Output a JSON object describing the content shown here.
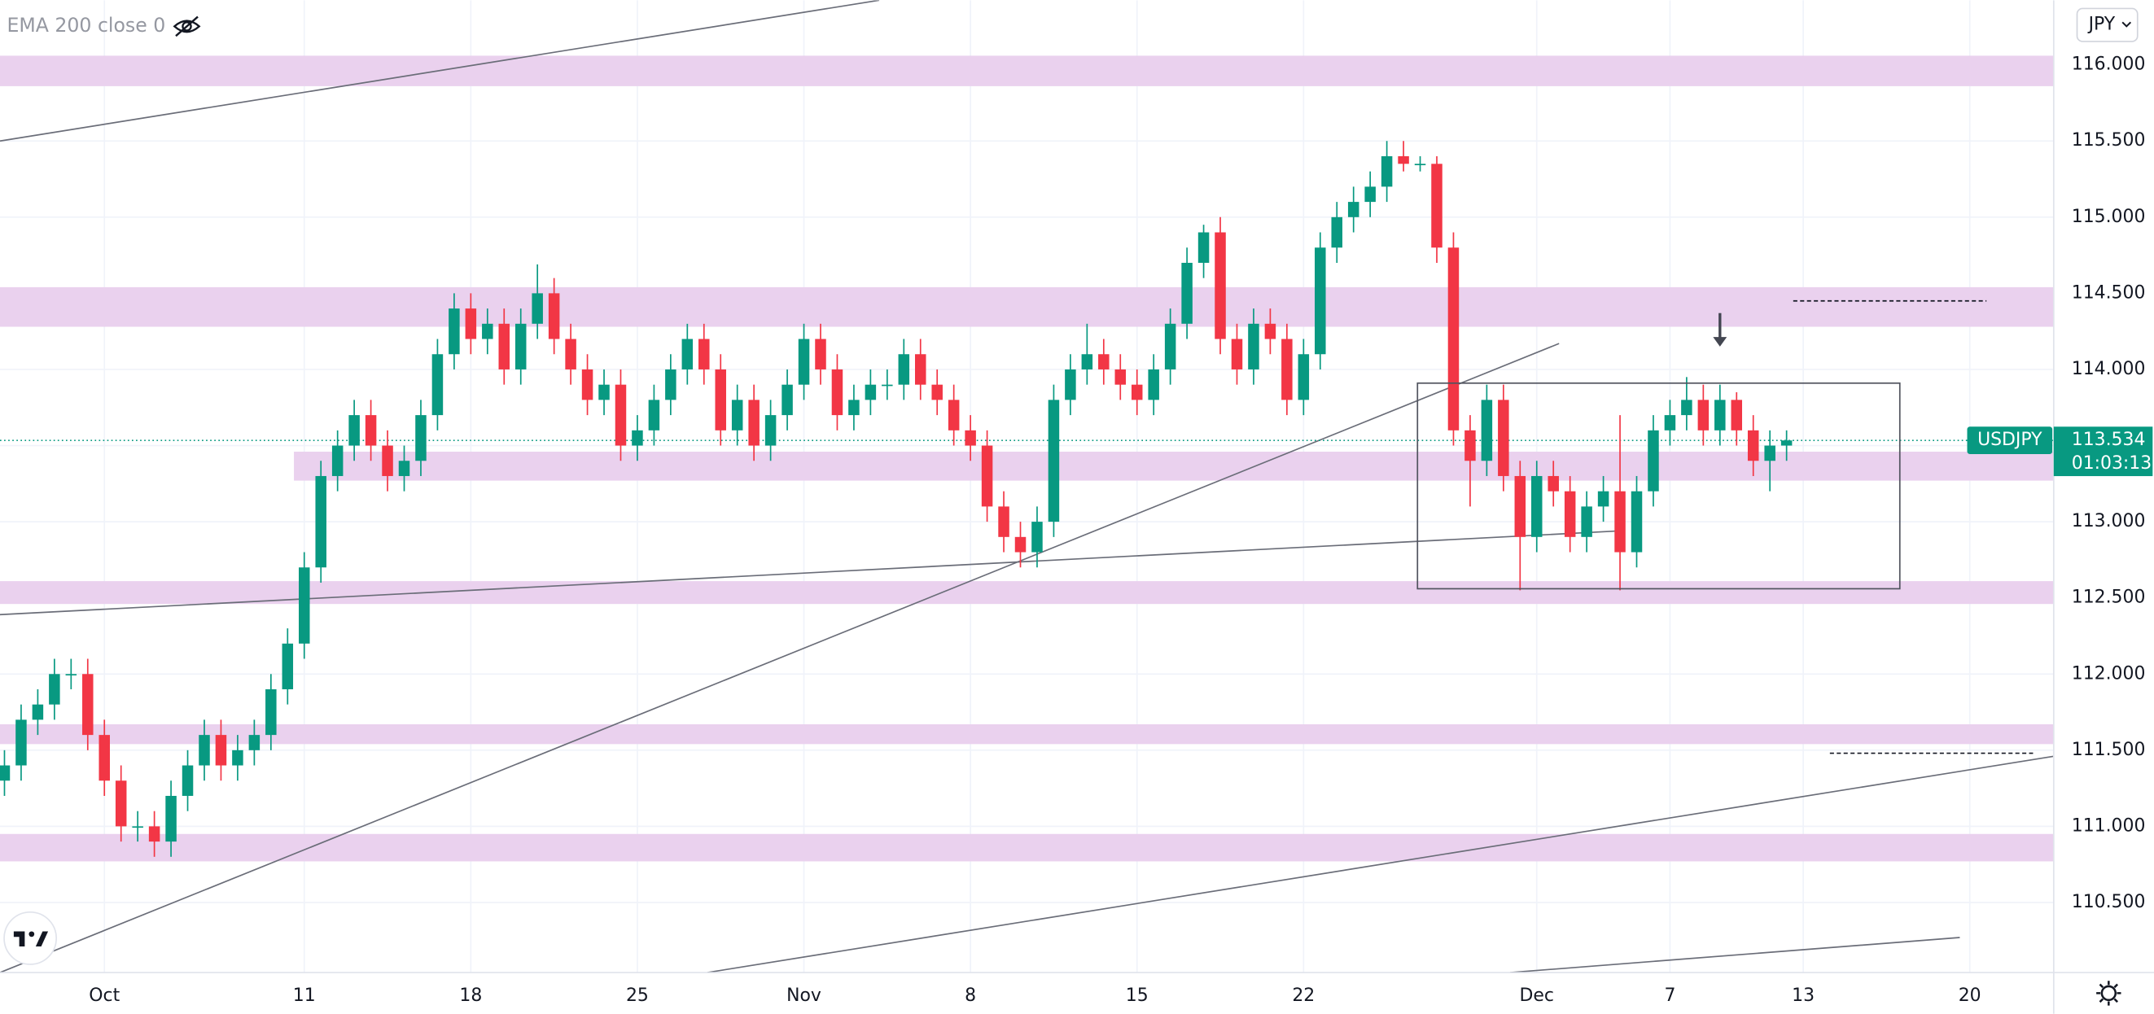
{
  "chart_data": {
    "type": "candlestick",
    "indicator": "EMA 200 close 0",
    "currency": "JPY",
    "symbol": "USDJPY",
    "last_price": 113.534,
    "countdown": "01:03:13",
    "up_color": "#089981",
    "down_color": "#f23645",
    "zone_color": "#ead1ee",
    "line_color": "#6a6d78",
    "grid": true,
    "xlim": [
      -3.134,
      58.52
    ],
    "ylim": [
      110.04,
      116.424
    ],
    "xticks": [
      {
        "value": 0,
        "label": "Oct"
      },
      {
        "value": 6,
        "label": "11"
      },
      {
        "value": 11,
        "label": "18"
      },
      {
        "value": 16,
        "label": "25"
      },
      {
        "value": 21,
        "label": "Nov"
      },
      {
        "value": 26,
        "label": "8"
      },
      {
        "value": 31,
        "label": "15"
      },
      {
        "value": 36,
        "label": "22"
      },
      {
        "value": 43,
        "label": "Dec"
      },
      {
        "value": 47,
        "label": "7"
      },
      {
        "value": 51,
        "label": "13"
      },
      {
        "value": 56,
        "label": "20"
      }
    ],
    "yticks": [
      {
        "value": 110.5,
        "label": "110.500"
      },
      {
        "value": 111,
        "label": "111.000"
      },
      {
        "value": 111.5,
        "label": "111.500"
      },
      {
        "value": 112,
        "label": "112.000"
      },
      {
        "value": 112.5,
        "label": "112.500"
      },
      {
        "value": 113,
        "label": "113.000"
      },
      {
        "value": 113.5,
        "label": "113.500"
      },
      {
        "value": 114,
        "label": "114.000"
      },
      {
        "value": 114.5,
        "label": "114.500"
      },
      {
        "value": 115,
        "label": "115.000"
      },
      {
        "value": 115.5,
        "label": "115.500"
      },
      {
        "value": 116,
        "label": "116.000"
      }
    ],
    "x": [
      -3,
      -2.5,
      -2,
      -1.5,
      -1,
      -0.5,
      0,
      0.5,
      1,
      1.5,
      2,
      2.5,
      3,
      3.5,
      4,
      4.5,
      5,
      5.5,
      6,
      6.5,
      7,
      7.5,
      8,
      8.5,
      9,
      9.5,
      10,
      10.5,
      11,
      11.5,
      12,
      12.5,
      13,
      13.5,
      14,
      14.5,
      15,
      15.5,
      16,
      16.5,
      17,
      17.5,
      18,
      18.5,
      19,
      19.5,
      20,
      20.5,
      21,
      21.5,
      22,
      22.5,
      23,
      23.5,
      24,
      24.5,
      25,
      25.5,
      26,
      26.5,
      27,
      27.5,
      28,
      28.5,
      29,
      29.5,
      30,
      30.5,
      31,
      31.5,
      32,
      32.5,
      33,
      33.5,
      34,
      34.5,
      35,
      35.5,
      36,
      36.5,
      37,
      37.5,
      38,
      38.5,
      39,
      39.5,
      40,
      40.5,
      41,
      41.5,
      42,
      42.5,
      43,
      43.5,
      44,
      44.5,
      45,
      45.5,
      46,
      46.5,
      47,
      47.5,
      48,
      48.5,
      49,
      49.5,
      50,
      50.5
    ],
    "open": [
      111.3,
      111.4,
      111.7,
      111.8,
      112.0,
      112.0,
      111.6,
      111.3,
      111.0,
      111.0,
      110.9,
      111.2,
      111.4,
      111.6,
      111.4,
      111.5,
      111.6,
      111.9,
      112.2,
      112.7,
      113.3,
      113.5,
      113.7,
      113.5,
      113.3,
      113.4,
      113.7,
      114.1,
      114.4,
      114.2,
      114.3,
      114.0,
      114.3,
      114.5,
      114.2,
      114.0,
      113.8,
      113.9,
      113.5,
      113.6,
      113.8,
      114.0,
      114.2,
      114.0,
      113.6,
      113.8,
      113.5,
      113.7,
      113.9,
      114.2,
      114.0,
      113.7,
      113.8,
      113.9,
      113.9,
      114.1,
      113.9,
      113.8,
      113.6,
      113.5,
      113.1,
      112.9,
      112.8,
      113.0,
      113.8,
      114.0,
      114.1,
      114.0,
      113.9,
      113.8,
      114.0,
      114.3,
      114.7,
      114.9,
      114.2,
      114.0,
      114.3,
      114.2,
      113.8,
      114.1,
      114.8,
      115.0,
      115.1,
      115.2,
      115.4,
      115.35,
      115.35,
      114.8,
      113.6,
      113.4,
      113.8,
      113.3,
      112.9,
      113.3,
      113.2,
      112.9,
      113.1,
      113.2,
      112.8,
      113.2,
      113.6,
      113.7,
      113.8,
      113.6,
      113.8,
      113.6,
      113.4,
      113.5
    ],
    "high": [
      111.5,
      111.8,
      111.9,
      112.1,
      112.1,
      112.1,
      111.7,
      111.4,
      111.1,
      111.1,
      111.3,
      111.5,
      111.7,
      111.7,
      111.6,
      111.7,
      112.0,
      112.3,
      112.8,
      113.4,
      113.6,
      113.8,
      113.8,
      113.6,
      113.5,
      113.8,
      114.2,
      114.5,
      114.5,
      114.4,
      114.4,
      114.4,
      114.69,
      114.6,
      114.3,
      114.1,
      114.0,
      114.0,
      113.7,
      113.9,
      114.1,
      114.3,
      114.3,
      114.1,
      113.9,
      113.9,
      113.8,
      114.0,
      114.3,
      114.3,
      114.1,
      113.9,
      114.0,
      114.0,
      114.2,
      114.2,
      114.0,
      113.9,
      113.7,
      113.6,
      113.2,
      113.0,
      113.1,
      113.9,
      114.1,
      114.3,
      114.2,
      114.1,
      114.0,
      114.1,
      114.4,
      114.8,
      114.95,
      115.0,
      114.3,
      114.4,
      114.4,
      114.3,
      114.2,
      114.9,
      115.1,
      115.2,
      115.3,
      115.5,
      115.5,
      115.4,
      115.4,
      114.9,
      113.7,
      113.9,
      113.9,
      113.4,
      113.4,
      113.4,
      113.3,
      113.2,
      113.3,
      113.7,
      113.3,
      113.7,
      113.8,
      113.95,
      113.9,
      113.9,
      113.85,
      113.7,
      113.6,
      113.6
    ],
    "low": [
      111.2,
      111.3,
      111.6,
      111.7,
      111.9,
      111.5,
      111.2,
      110.9,
      110.9,
      110.8,
      110.8,
      111.1,
      111.3,
      111.3,
      111.3,
      111.4,
      111.5,
      111.8,
      112.1,
      112.6,
      113.2,
      113.4,
      113.4,
      113.2,
      113.2,
      113.3,
      113.6,
      114.0,
      114.1,
      114.1,
      113.9,
      113.9,
      114.2,
      114.1,
      113.9,
      113.7,
      113.7,
      113.4,
      113.4,
      113.5,
      113.7,
      113.9,
      113.9,
      113.5,
      113.5,
      113.4,
      113.4,
      113.6,
      113.8,
      113.9,
      113.6,
      113.6,
      113.7,
      113.8,
      113.8,
      113.8,
      113.7,
      113.5,
      113.4,
      113.0,
      112.8,
      112.7,
      112.7,
      112.9,
      113.7,
      113.9,
      113.9,
      113.8,
      113.7,
      113.7,
      113.9,
      114.2,
      114.6,
      114.1,
      113.9,
      113.9,
      114.1,
      113.7,
      113.7,
      114.0,
      114.7,
      114.9,
      115.0,
      115.1,
      115.3,
      115.3,
      114.7,
      113.5,
      113.1,
      113.3,
      113.2,
      112.55,
      112.8,
      113.1,
      112.8,
      112.8,
      113.0,
      112.55,
      112.7,
      113.1,
      113.5,
      113.6,
      113.5,
      113.5,
      113.5,
      113.3,
      113.2,
      113.4
    ],
    "close": [
      111.4,
      111.7,
      111.8,
      112.0,
      112.0,
      111.6,
      111.3,
      111.0,
      111.0,
      110.9,
      111.2,
      111.4,
      111.6,
      111.4,
      111.5,
      111.6,
      111.9,
      112.2,
      112.7,
      113.3,
      113.5,
      113.7,
      113.5,
      113.3,
      113.4,
      113.7,
      114.1,
      114.4,
      114.2,
      114.3,
      114.0,
      114.3,
      114.5,
      114.2,
      114.0,
      113.8,
      113.9,
      113.5,
      113.6,
      113.8,
      114.0,
      114.2,
      114.0,
      113.6,
      113.8,
      113.5,
      113.7,
      113.9,
      114.2,
      114.0,
      113.7,
      113.8,
      113.9,
      113.9,
      114.1,
      113.9,
      113.8,
      113.6,
      113.5,
      113.1,
      112.9,
      112.8,
      113.0,
      113.8,
      114.0,
      114.1,
      114.0,
      113.9,
      113.8,
      114.0,
      114.3,
      114.7,
      114.9,
      114.2,
      114.0,
      114.3,
      114.2,
      113.8,
      114.1,
      114.8,
      115.0,
      115.1,
      115.2,
      115.4,
      115.35,
      115.35,
      114.8,
      113.6,
      113.4,
      113.8,
      113.3,
      112.9,
      113.3,
      113.2,
      112.9,
      113.1,
      113.2,
      112.8,
      113.2,
      113.6,
      113.7,
      113.8,
      113.6,
      113.8,
      113.6,
      113.4,
      113.5,
      113.534
    ],
    "zones": [
      {
        "low": 115.86,
        "high": 116.06
      },
      {
        "low": 114.28,
        "high": 114.54
      },
      {
        "low": 113.27,
        "high": 113.46,
        "x_start": 5.69
      },
      {
        "low": 112.46,
        "high": 112.61
      },
      {
        "low": 111.54,
        "high": 111.67
      },
      {
        "low": 110.77,
        "high": 110.95
      }
    ],
    "trendlines": [
      {
        "x": [
          -3.134,
          23.26
        ],
        "y": [
          115.5,
          116.424
        ]
      },
      {
        "x": [
          -3.134,
          45.5
        ],
        "y": [
          112.39,
          112.94
        ]
      },
      {
        "x": [
          -3.134,
          43.67
        ],
        "y": [
          110.04,
          114.17
        ]
      },
      {
        "x": [
          18.1,
          58.52
        ],
        "y": [
          110.04,
          111.46
        ]
      },
      {
        "x": [
          42.2,
          55.7
        ],
        "y": [
          110.04,
          110.27
        ]
      }
    ],
    "dashed_lines": [
      {
        "x": [
          50.7,
          56.5
        ],
        "y": 114.45
      },
      {
        "x": [
          51.8,
          57.9
        ],
        "y": 111.48
      }
    ],
    "box": {
      "x": [
        39.42,
        53.9
      ],
      "y": [
        112.56,
        113.91
      ]
    },
    "arrow": {
      "x": 48.5,
      "y": [
        114.37,
        114.15
      ]
    }
  }
}
